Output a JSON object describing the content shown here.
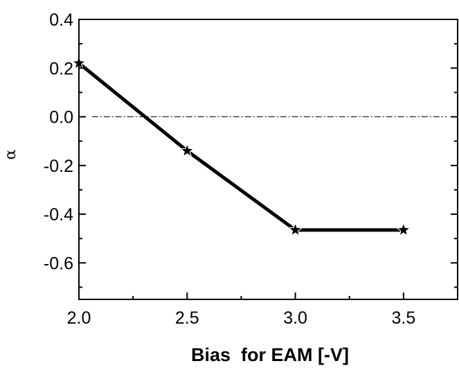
{
  "chart_data": {
    "type": "line",
    "title": "",
    "xlabel": "Bias  for EAM [-V]",
    "ylabel": "α",
    "xlim": [
      2.0,
      3.75
    ],
    "ylim": [
      -0.75,
      0.4
    ],
    "x_ticks": [
      "2.0",
      "2.5",
      "3.0",
      "3.5"
    ],
    "y_ticks": [
      "0.4",
      "0.2",
      "0.0",
      "-0.2",
      "-0.4",
      "-0.6"
    ],
    "series": [
      {
        "x": [
          2.0,
          2.5,
          3.0,
          3.5
        ],
        "y": [
          0.22,
          -0.14,
          -0.465,
          -0.465
        ],
        "marker": "star",
        "color": "#000000"
      }
    ],
    "reference_line": {
      "y": 0.0,
      "x_from": 2.06,
      "x_to": 3.7,
      "style": "dash-dot"
    },
    "grid": false,
    "legend": "none"
  }
}
